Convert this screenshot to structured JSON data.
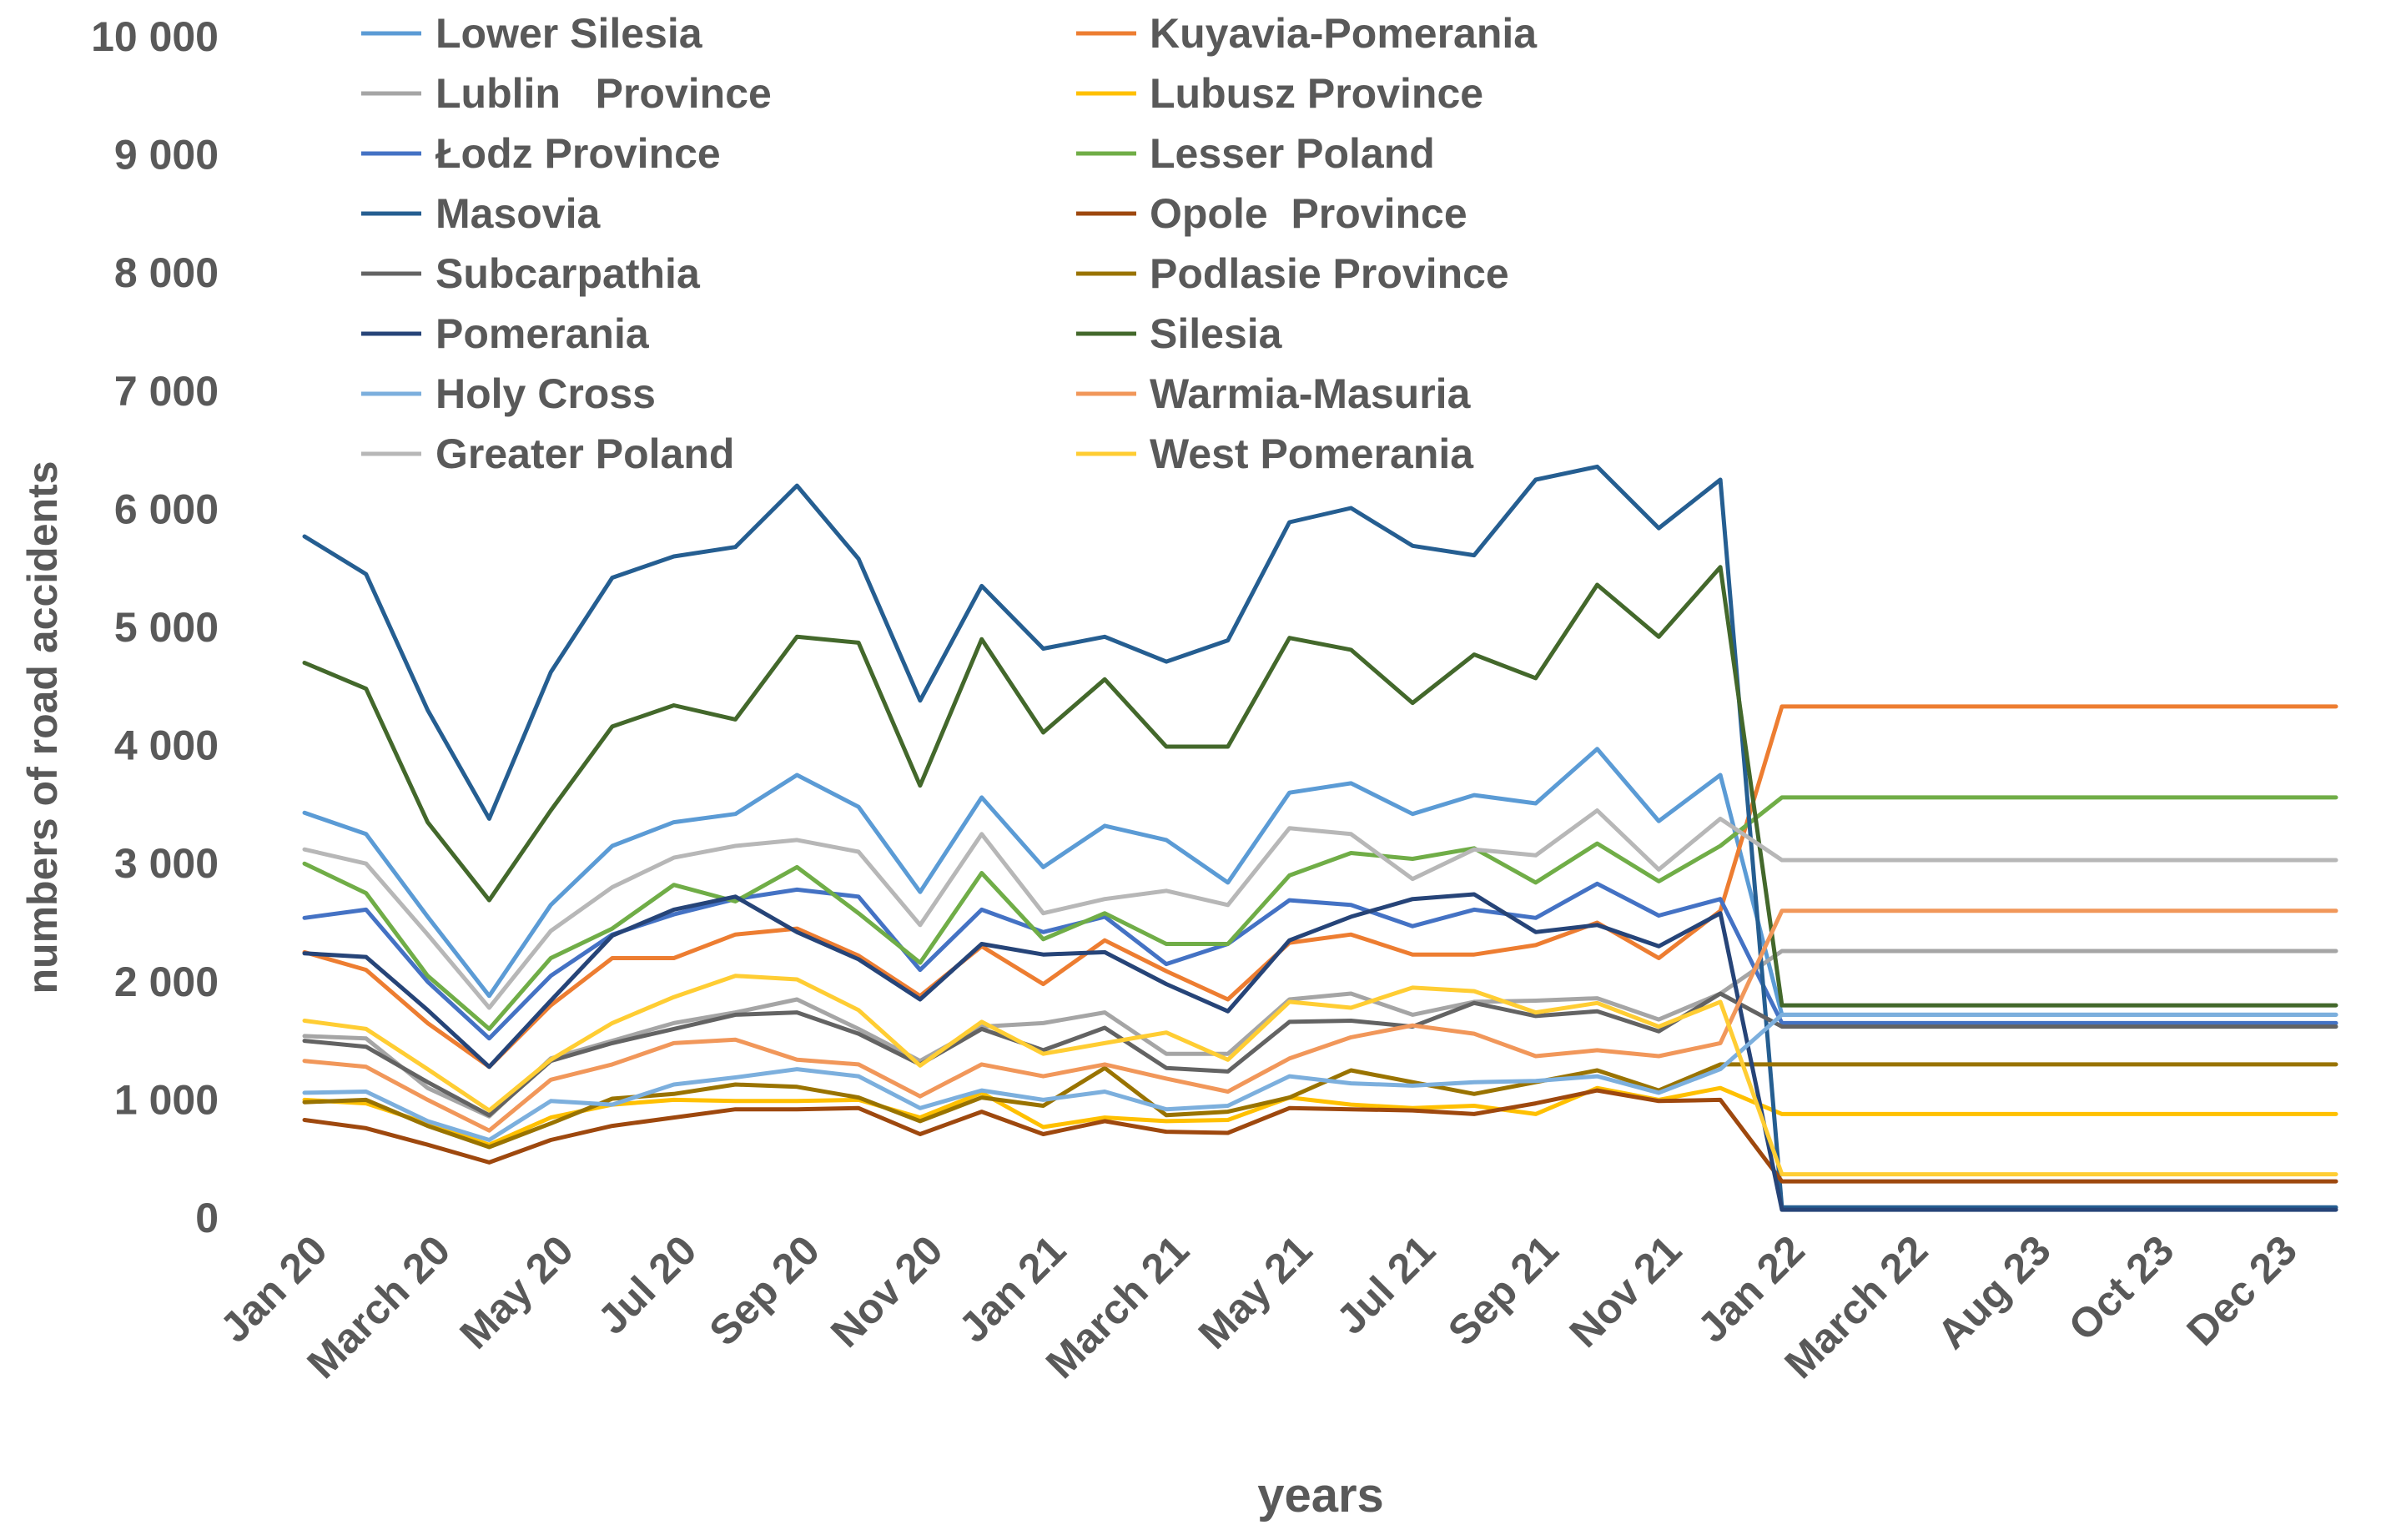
{
  "chart_data": {
    "type": "line",
    "title": "",
    "xlabel": "years",
    "ylabel": "numbers of road accidents",
    "ylim": [
      0,
      10000
    ],
    "yticks": [
      0,
      1000,
      2000,
      3000,
      4000,
      5000,
      6000,
      7000,
      8000,
      9000,
      10000
    ],
    "ytick_labels": [
      "0",
      "1 000",
      "2 000",
      "3 000",
      "4 000",
      "5 000",
      "6 000",
      "7 000",
      "8 000",
      "9 000",
      "10 000"
    ],
    "grid": false,
    "legend_position": "top",
    "x_tick_labels": [
      "Jan 20",
      "March 20",
      "May 20",
      "Jul 20",
      "Sep 20",
      "Nov 20",
      "Jan 21",
      "March 21",
      "May 21",
      "Jul 21",
      "Sep 21",
      "Nov 21",
      "Jan 22",
      "March 22",
      "Aug 23",
      "Oct 23",
      "Dec 23"
    ],
    "series": [
      {
        "name": "Lower Silesia",
        "color": "#5B9BD5",
        "values": [
          3430,
          3250,
          2550,
          1880,
          2650,
          3150,
          3350,
          3420,
          3750,
          3480,
          2760,
          3560,
          2970,
          3320,
          3200,
          2840,
          3600,
          3680,
          3420,
          3580,
          3510,
          3970,
          3360,
          3750,
          1720,
          1720,
          1720,
          1720,
          1720,
          1720,
          1720,
          1720,
          1720,
          1720
        ]
      },
      {
        "name": "Kuyavia-Pomerania",
        "color": "#ED7D31",
        "values": [
          2250,
          2100,
          1650,
          1280,
          1800,
          2200,
          2200,
          2400,
          2450,
          2220,
          1880,
          2300,
          1980,
          2350,
          2090,
          1850,
          2330,
          2400,
          2230,
          2230,
          2310,
          2500,
          2200,
          2600,
          4330,
          4330,
          4330,
          4330,
          4330,
          4330,
          4330,
          4330,
          4330,
          4330
        ]
      },
      {
        "name": "Lublin   Province",
        "color": "#A5A5A5",
        "values": [
          1540,
          1520,
          1100,
          860,
          1350,
          1500,
          1650,
          1740,
          1850,
          1600,
          1330,
          1620,
          1650,
          1740,
          1390,
          1390,
          1850,
          1900,
          1720,
          1830,
          1840,
          1860,
          1680,
          1900,
          2260,
          2260,
          2260,
          2260,
          2260,
          2260,
          2260,
          2260,
          2260,
          2260
        ]
      },
      {
        "name": "Lubusz Province",
        "color": "#FFC000",
        "values": [
          1000,
          970,
          800,
          620,
          850,
          960,
          1000,
          990,
          990,
          1000,
          850,
          1060,
          770,
          850,
          820,
          830,
          1020,
          960,
          930,
          950,
          880,
          1100,
          1000,
          1100,
          880,
          880,
          880,
          880,
          880,
          880,
          880,
          880,
          880,
          880
        ]
      },
      {
        "name": "Łodz Province",
        "color": "#4472C4",
        "values": [
          2540,
          2610,
          2000,
          1520,
          2050,
          2400,
          2570,
          2700,
          2780,
          2720,
          2100,
          2610,
          2420,
          2550,
          2150,
          2320,
          2690,
          2650,
          2470,
          2610,
          2540,
          2830,
          2560,
          2700,
          1650,
          1650,
          1650,
          1650,
          1650,
          1650,
          1650,
          1650,
          1650,
          1650
        ]
      },
      {
        "name": "Lesser Poland",
        "color": "#70AD47",
        "values": [
          3000,
          2750,
          2050,
          1600,
          2200,
          2450,
          2820,
          2680,
          2970,
          2580,
          2160,
          2920,
          2360,
          2580,
          2320,
          2320,
          2900,
          3090,
          3040,
          3130,
          2840,
          3170,
          2850,
          3150,
          3560,
          3560,
          3560,
          3560,
          3560,
          3560,
          3560,
          3560,
          3560,
          3560
        ]
      },
      {
        "name": "Masovia",
        "color": "#255E91",
        "values": [
          5770,
          5450,
          4300,
          3380,
          4620,
          5420,
          5600,
          5680,
          6200,
          5580,
          4380,
          5350,
          4820,
          4920,
          4710,
          4890,
          5890,
          6010,
          5690,
          5610,
          6250,
          6360,
          5840,
          6250,
          90,
          90,
          90,
          90,
          90,
          90,
          90,
          90,
          90,
          90
        ]
      },
      {
        "name": "Opole  Province",
        "color": "#9E480E",
        "values": [
          830,
          760,
          620,
          470,
          660,
          780,
          850,
          920,
          920,
          930,
          710,
          900,
          710,
          820,
          730,
          720,
          930,
          920,
          910,
          880,
          970,
          1080,
          990,
          1000,
          310,
          310,
          310,
          310,
          310,
          310,
          310,
          310,
          310,
          310
        ]
      },
      {
        "name": "Subcarpathia",
        "color": "#636363",
        "values": [
          1500,
          1450,
          1150,
          870,
          1330,
          1480,
          1600,
          1720,
          1740,
          1560,
          1300,
          1600,
          1420,
          1610,
          1270,
          1240,
          1660,
          1670,
          1620,
          1820,
          1710,
          1750,
          1580,
          1900,
          1620,
          1620,
          1620,
          1620,
          1620,
          1620,
          1620,
          1620,
          1620,
          1620
        ]
      },
      {
        "name": "Podlasie Province",
        "color": "#997300",
        "values": [
          980,
          1000,
          780,
          600,
          800,
          1010,
          1050,
          1130,
          1110,
          1020,
          820,
          1020,
          950,
          1270,
          870,
          900,
          1020,
          1250,
          1150,
          1050,
          1150,
          1250,
          1080,
          1300,
          1300,
          1300,
          1300,
          1300,
          1300,
          1300,
          1300,
          1300,
          1300,
          1300
        ]
      },
      {
        "name": "Pomerania",
        "color": "#264478",
        "values": [
          2240,
          2210,
          1760,
          1280,
          1840,
          2390,
          2610,
          2720,
          2420,
          2190,
          1850,
          2320,
          2230,
          2250,
          1980,
          1750,
          2350,
          2550,
          2700,
          2740,
          2420,
          2480,
          2300,
          2580,
          70,
          70,
          70,
          70,
          70,
          70,
          70,
          70,
          70,
          70
        ]
      },
      {
        "name": "Silesia",
        "color": "#43682B",
        "values": [
          4700,
          4480,
          3350,
          2690,
          3450,
          4160,
          4340,
          4220,
          4920,
          4870,
          3660,
          4900,
          4110,
          4560,
          3990,
          3990,
          4910,
          4810,
          4360,
          4770,
          4570,
          5360,
          4920,
          5510,
          1800,
          1800,
          1800,
          1800,
          1800,
          1800,
          1800,
          1800,
          1800,
          1800
        ]
      },
      {
        "name": "Holy Cross",
        "color": "#7CAFDD",
        "values": [
          1060,
          1070,
          820,
          660,
          990,
          960,
          1130,
          1190,
          1260,
          1200,
          930,
          1080,
          1000,
          1070,
          920,
          950,
          1200,
          1140,
          1120,
          1150,
          1160,
          1200,
          1060,
          1260,
          1720,
          1720,
          1720,
          1720,
          1720,
          1720,
          1720,
          1720,
          1720,
          1720
        ]
      },
      {
        "name": "Warmia-Masuria",
        "color": "#F1975A",
        "values": [
          1330,
          1280,
          1000,
          740,
          1170,
          1300,
          1480,
          1510,
          1340,
          1300,
          1030,
          1300,
          1200,
          1300,
          1180,
          1070,
          1350,
          1530,
          1630,
          1560,
          1370,
          1420,
          1370,
          1480,
          2600,
          2600,
          2600,
          2600,
          2600,
          2600,
          2600,
          2600,
          2600,
          2600
        ]
      },
      {
        "name": "Greater Poland",
        "color": "#B7B7B7",
        "values": [
          3120,
          3000,
          2400,
          1780,
          2430,
          2800,
          3050,
          3150,
          3200,
          3100,
          2480,
          3250,
          2580,
          2700,
          2770,
          2650,
          3300,
          3250,
          2870,
          3120,
          3070,
          3450,
          2950,
          3380,
          3030,
          3030,
          3030,
          3030,
          3030,
          3030,
          3030,
          3030,
          3030,
          3030
        ]
      },
      {
        "name": "West Pomerania",
        "color": "#FFCD33",
        "values": [
          1670,
          1600,
          1260,
          910,
          1340,
          1650,
          1870,
          2050,
          2020,
          1760,
          1290,
          1660,
          1390,
          1480,
          1570,
          1340,
          1830,
          1780,
          1950,
          1920,
          1740,
          1820,
          1620,
          1830,
          370,
          370,
          370,
          370,
          370,
          370,
          370,
          370,
          370,
          370
        ]
      }
    ]
  }
}
